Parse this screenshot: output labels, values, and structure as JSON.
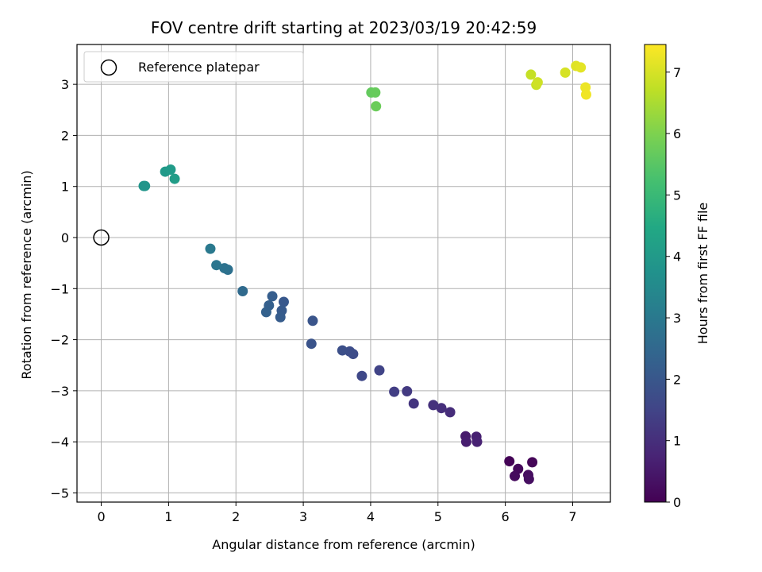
{
  "chart_data": {
    "type": "scatter",
    "title": "FOV centre drift starting at 2023/03/19 20:42:59",
    "xlabel": "Angular distance from reference (arcmin)",
    "ylabel": "Rotation from reference (arcmin)",
    "xlim": [
      -0.36,
      7.56
    ],
    "ylim": [
      -5.18,
      3.78
    ],
    "xticks": [
      0,
      1,
      2,
      3,
      4,
      5,
      6,
      7
    ],
    "yticks": [
      -5,
      -4,
      -3,
      -2,
      -1,
      0,
      1,
      2,
      3
    ],
    "xtick_labels": [
      "0",
      "1",
      "2",
      "3",
      "4",
      "5",
      "6",
      "7"
    ],
    "ytick_labels": [
      "−5",
      "−4",
      "−3",
      "−2",
      "−1",
      "0",
      "1",
      "2",
      "3"
    ],
    "grid": true,
    "legend": {
      "position": "top-left",
      "entries": [
        "Reference platepar"
      ]
    },
    "reference_point": {
      "x": 0,
      "y": 0,
      "label": "Reference platepar"
    },
    "colorbar": {
      "label": "Hours from first FF file",
      "range": [
        0,
        7.45
      ],
      "ticks": [
        0,
        1,
        2,
        3,
        4,
        5,
        6,
        7
      ],
      "tick_labels": [
        "0",
        "1",
        "2",
        "3",
        "4",
        "5",
        "6",
        "7"
      ],
      "colormap": "viridis"
    },
    "points": [
      {
        "x": 6.06,
        "y": -4.38,
        "c": 0.05
      },
      {
        "x": 6.4,
        "y": -4.4,
        "c": 0.1
      },
      {
        "x": 6.19,
        "y": -4.53,
        "c": 0.15
      },
      {
        "x": 6.14,
        "y": -4.67,
        "c": 0.2
      },
      {
        "x": 6.34,
        "y": -4.65,
        "c": 0.25
      },
      {
        "x": 6.35,
        "y": -4.73,
        "c": 0.3
      },
      {
        "x": 5.41,
        "y": -3.89,
        "c": 0.55
      },
      {
        "x": 5.42,
        "y": -4.0,
        "c": 0.6
      },
      {
        "x": 5.57,
        "y": -3.9,
        "c": 0.65
      },
      {
        "x": 5.58,
        "y": -4.0,
        "c": 0.7
      },
      {
        "x": 5.18,
        "y": -3.42,
        "c": 0.95
      },
      {
        "x": 5.05,
        "y": -3.34,
        "c": 1.0
      },
      {
        "x": 4.93,
        "y": -3.28,
        "c": 1.05
      },
      {
        "x": 4.64,
        "y": -3.25,
        "c": 1.15
      },
      {
        "x": 4.54,
        "y": -3.01,
        "c": 1.25
      },
      {
        "x": 4.35,
        "y": -3.02,
        "c": 1.35
      },
      {
        "x": 4.13,
        "y": -2.6,
        "c": 1.5
      },
      {
        "x": 3.87,
        "y": -2.71,
        "c": 1.6
      },
      {
        "x": 3.74,
        "y": -2.28,
        "c": 1.7
      },
      {
        "x": 3.69,
        "y": -2.23,
        "c": 1.75
      },
      {
        "x": 3.58,
        "y": -2.21,
        "c": 1.8
      },
      {
        "x": 3.12,
        "y": -2.08,
        "c": 1.9
      },
      {
        "x": 3.14,
        "y": -1.63,
        "c": 1.95
      },
      {
        "x": 2.71,
        "y": -1.26,
        "c": 2.05
      },
      {
        "x": 2.68,
        "y": -1.43,
        "c": 2.1
      },
      {
        "x": 2.66,
        "y": -1.56,
        "c": 2.15
      },
      {
        "x": 2.54,
        "y": -1.15,
        "c": 2.2
      },
      {
        "x": 2.49,
        "y": -1.33,
        "c": 2.25
      },
      {
        "x": 2.45,
        "y": -1.46,
        "c": 2.3
      },
      {
        "x": 2.1,
        "y": -1.05,
        "c": 2.55
      },
      {
        "x": 1.88,
        "y": -0.63,
        "c": 2.75
      },
      {
        "x": 1.83,
        "y": -0.6,
        "c": 2.8
      },
      {
        "x": 1.71,
        "y": -0.54,
        "c": 2.9
      },
      {
        "x": 1.62,
        "y": -0.22,
        "c": 3.0
      },
      {
        "x": 0.63,
        "y": 1.01,
        "c": 3.85
      },
      {
        "x": 0.65,
        "y": 1.01,
        "c": 3.87
      },
      {
        "x": 0.95,
        "y": 1.29,
        "c": 4.0
      },
      {
        "x": 1.03,
        "y": 1.33,
        "c": 4.05
      },
      {
        "x": 1.09,
        "y": 1.15,
        "c": 4.1
      },
      {
        "x": 4.01,
        "y": 2.84,
        "c": 5.65
      },
      {
        "x": 4.07,
        "y": 2.84,
        "c": 5.7
      },
      {
        "x": 4.08,
        "y": 2.57,
        "c": 5.75
      },
      {
        "x": 6.38,
        "y": 3.19,
        "c": 6.8
      },
      {
        "x": 6.46,
        "y": 2.99,
        "c": 6.85
      },
      {
        "x": 6.48,
        "y": 3.04,
        "c": 6.9
      },
      {
        "x": 6.89,
        "y": 3.23,
        "c": 7.0
      },
      {
        "x": 7.05,
        "y": 3.36,
        "c": 7.1
      },
      {
        "x": 7.12,
        "y": 3.33,
        "c": 7.15
      },
      {
        "x": 7.19,
        "y": 2.94,
        "c": 7.25
      },
      {
        "x": 7.2,
        "y": 2.8,
        "c": 7.3
      }
    ]
  }
}
